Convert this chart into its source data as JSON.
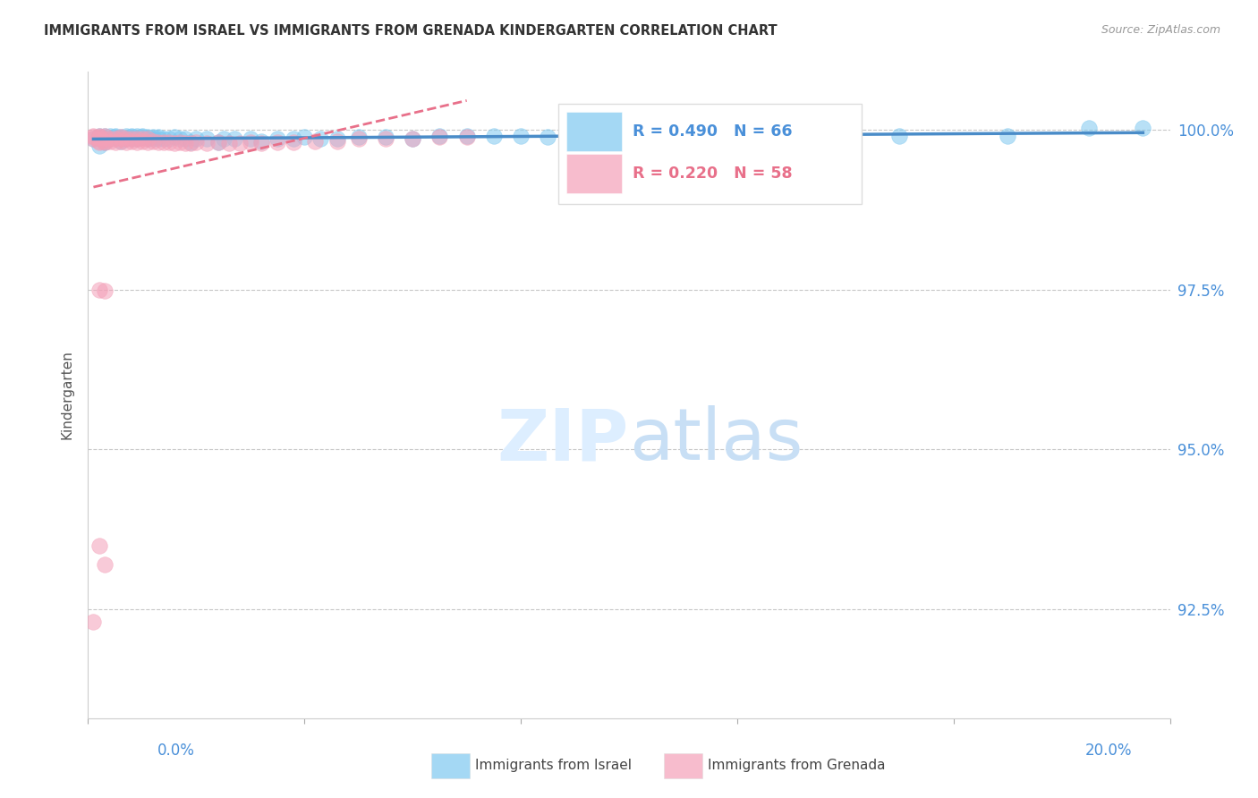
{
  "title": "IMMIGRANTS FROM ISRAEL VS IMMIGRANTS FROM GRENADA KINDERGARTEN CORRELATION CHART",
  "source": "Source: ZipAtlas.com",
  "ylabel": "Kindergarten",
  "ytick_labels": [
    "92.5%",
    "95.0%",
    "97.5%",
    "100.0%"
  ],
  "ytick_values": [
    0.925,
    0.95,
    0.975,
    1.0
  ],
  "xmin": 0.0,
  "xmax": 0.2,
  "ymin": 0.908,
  "ymax": 1.009,
  "legend_israel": "Immigrants from Israel",
  "legend_grenada": "Immigrants from Grenada",
  "R_israel": 0.49,
  "N_israel": 66,
  "R_grenada": 0.22,
  "N_grenada": 58,
  "color_israel": "#7EC8F0",
  "color_grenada": "#F4A0B8",
  "line_israel": "#4A8CC8",
  "line_grenada": "#E8708A",
  "background_color": "#ffffff",
  "israel_x": [
    0.001,
    0.002,
    0.002,
    0.003,
    0.003,
    0.003,
    0.004,
    0.004,
    0.005,
    0.005,
    0.006,
    0.006,
    0.006,
    0.007,
    0.007,
    0.008,
    0.008,
    0.008,
    0.009,
    0.009,
    0.01,
    0.01,
    0.011,
    0.011,
    0.012,
    0.012,
    0.013,
    0.013,
    0.014,
    0.015,
    0.016,
    0.017,
    0.018,
    0.019,
    0.02,
    0.022,
    0.024,
    0.025,
    0.027,
    0.03,
    0.032,
    0.035,
    0.038,
    0.04,
    0.043,
    0.046,
    0.05,
    0.055,
    0.06,
    0.065,
    0.07,
    0.075,
    0.08,
    0.085,
    0.09,
    0.095,
    0.1,
    0.105,
    0.11,
    0.12,
    0.13,
    0.14,
    0.15,
    0.17,
    0.185,
    0.195
  ],
  "israel_y": [
    0.9985,
    0.999,
    0.9975,
    0.999,
    0.9985,
    0.998,
    0.999,
    0.9985,
    0.999,
    0.9988,
    0.9988,
    0.9985,
    0.9982,
    0.999,
    0.9985,
    0.999,
    0.9988,
    0.9985,
    0.999,
    0.9985,
    0.999,
    0.9988,
    0.9988,
    0.9985,
    0.9988,
    0.9985,
    0.9988,
    0.9985,
    0.9985,
    0.9985,
    0.9988,
    0.9985,
    0.9985,
    0.998,
    0.9985,
    0.9985,
    0.998,
    0.9985,
    0.9985,
    0.9985,
    0.9982,
    0.9985,
    0.9985,
    0.9988,
    0.9985,
    0.9985,
    0.9988,
    0.9988,
    0.9985,
    0.999,
    0.999,
    0.999,
    0.999,
    0.9988,
    0.999,
    0.9988,
    0.999,
    0.9988,
    0.9985,
    0.999,
    0.999,
    0.999,
    0.999,
    0.999,
    1.0003,
    1.0003
  ],
  "grenada_x": [
    0.001,
    0.001,
    0.001,
    0.002,
    0.002,
    0.002,
    0.002,
    0.002,
    0.003,
    0.003,
    0.003,
    0.003,
    0.004,
    0.004,
    0.005,
    0.005,
    0.006,
    0.006,
    0.006,
    0.007,
    0.007,
    0.008,
    0.008,
    0.009,
    0.009,
    0.01,
    0.01,
    0.011,
    0.011,
    0.012,
    0.013,
    0.014,
    0.015,
    0.016,
    0.017,
    0.018,
    0.019,
    0.02,
    0.022,
    0.024,
    0.026,
    0.028,
    0.03,
    0.032,
    0.035,
    0.038,
    0.042,
    0.046,
    0.05,
    0.055,
    0.06,
    0.065,
    0.07,
    0.002,
    0.003,
    0.002,
    0.003,
    0.001
  ],
  "grenada_y": [
    0.999,
    0.9988,
    0.9985,
    0.999,
    0.9988,
    0.9985,
    0.9982,
    0.998,
    0.999,
    0.9985,
    0.9982,
    0.998,
    0.9985,
    0.9982,
    0.9985,
    0.998,
    0.9988,
    0.9985,
    0.9982,
    0.9985,
    0.998,
    0.9985,
    0.9982,
    0.9985,
    0.998,
    0.9985,
    0.9982,
    0.9985,
    0.998,
    0.9982,
    0.998,
    0.998,
    0.998,
    0.9978,
    0.998,
    0.9978,
    0.9978,
    0.998,
    0.9978,
    0.998,
    0.9978,
    0.9978,
    0.998,
    0.9978,
    0.998,
    0.998,
    0.9982,
    0.9982,
    0.9985,
    0.9985,
    0.9985,
    0.9988,
    0.9988,
    0.975,
    0.9748,
    0.935,
    0.932,
    0.923
  ]
}
